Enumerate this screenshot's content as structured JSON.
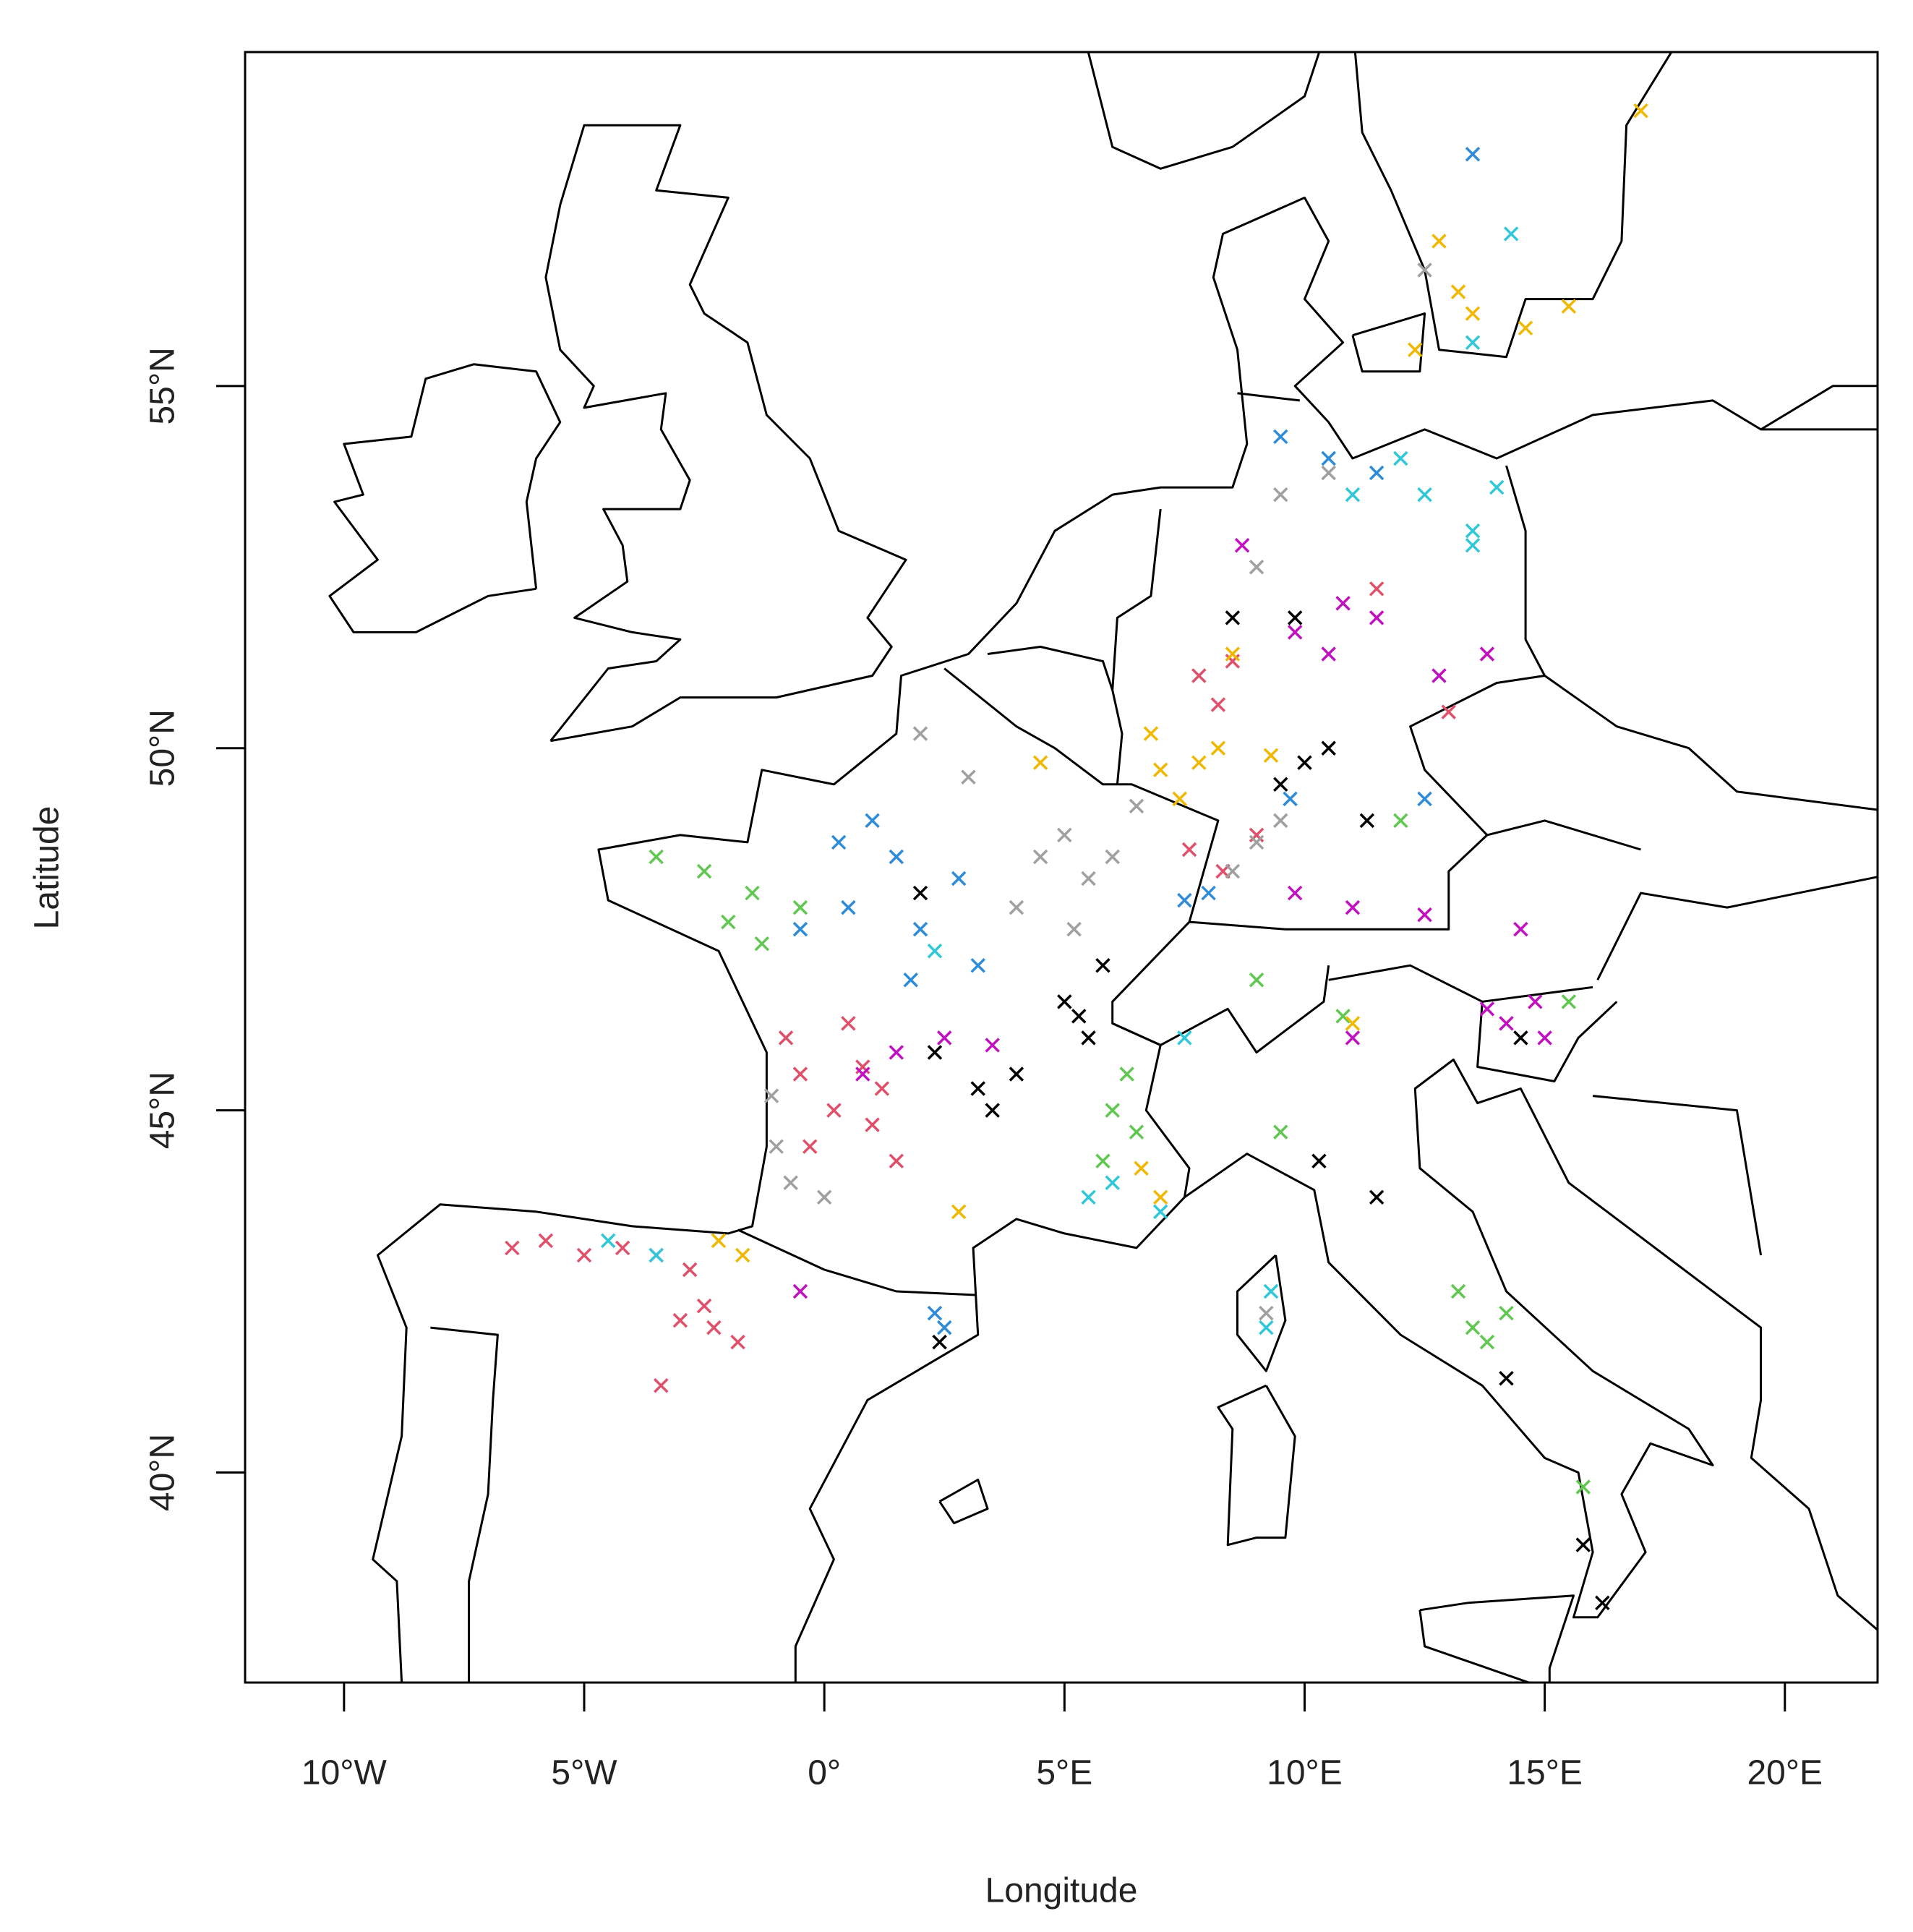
{
  "chart_data": {
    "type": "scatter",
    "x_label": "Longitude",
    "y_label": "Latitude",
    "xlim": [
      -12.06,
      21.93
    ],
    "ylim": [
      37.1,
      59.61
    ],
    "xticks": [
      {
        "value": -10,
        "label": "10°W"
      },
      {
        "value": -5,
        "label": "5°W"
      },
      {
        "value": 0,
        "label": "0°"
      },
      {
        "value": 5,
        "label": "5°E"
      },
      {
        "value": 10,
        "label": "10°E"
      },
      {
        "value": 15,
        "label": "15°E"
      },
      {
        "value": 20,
        "label": "20°E"
      }
    ],
    "yticks": [
      {
        "value": 40,
        "label": "40°N"
      },
      {
        "value": 45,
        "label": "45°N"
      },
      {
        "value": 50,
        "label": "50°N"
      },
      {
        "value": 55,
        "label": "55°N"
      }
    ],
    "marker": "x",
    "series": [
      {
        "color": "#e0506a",
        "x": [
          -6.5,
          -5.8,
          -5,
          -4.2,
          -3.5,
          -2.8,
          -2.5,
          -3,
          -2.3,
          -3.4,
          -1.8,
          -0.5,
          0.2,
          1,
          -0.3,
          0.8,
          1.5,
          0.5,
          -0.8,
          1.2,
          7.8,
          8.5,
          8.2,
          7.6,
          8.3,
          9.0,
          11.5,
          13
        ],
        "values": [
          43.1,
          43.2,
          43.0,
          43.1,
          43.0,
          42.8,
          42.3,
          42.1,
          42.0,
          41.2,
          41.8,
          45.5,
          45.0,
          44.8,
          44.5,
          45.6,
          44.3,
          46.2,
          46.0,
          45.3,
          51.0,
          51.2,
          50.6,
          48.6,
          48.3,
          48.8,
          52.2,
          50.5
        ]
      },
      {
        "color": "#c010c0",
        "x": [
          1.5,
          2.5,
          3.5,
          0.8,
          9.8,
          10.8,
          11.5,
          10.5,
          9.8,
          11,
          12.5,
          14.5,
          14.2,
          15,
          14.8,
          13.8,
          12.8,
          13.8,
          8.7,
          -0.5,
          11
        ],
        "values": [
          45.8,
          46.0,
          45.9,
          45.5,
          51.6,
          52.0,
          51.8,
          51.3,
          48.0,
          47.8,
          47.7,
          47.5,
          46.2,
          46.0,
          46.5,
          46.4,
          51.0,
          51.3,
          52.8,
          42.5,
          46
        ]
      },
      {
        "color": "#000000",
        "x": [
          4,
          3.5,
          5,
          5.5,
          5.8,
          5.3,
          3.2,
          2.3,
          9.5,
          10,
          9.8,
          10.5,
          11.3,
          8.5,
          10.3,
          11.5,
          14.2,
          15.8,
          16.2,
          2.4,
          14.5,
          2
        ],
        "values": [
          45.5,
          45,
          46.5,
          46.0,
          47.0,
          46.3,
          45.3,
          45.8,
          49.5,
          49.8,
          51.8,
          50.0,
          49.0,
          51.8,
          44.3,
          43.8,
          41.3,
          39,
          38.2,
          41.8,
          46.0,
          48
        ]
      },
      {
        "color": "#a0a0a0",
        "x": [
          5,
          5.5,
          4.5,
          6,
          5.2,
          4,
          6.5,
          -1,
          -0.7,
          0,
          -1.1,
          8.5,
          9,
          9.5,
          2,
          3,
          9.5,
          10.5,
          9.2,
          12.5,
          9
        ],
        "values": [
          48.8,
          48.2,
          48.5,
          48.5,
          47.5,
          47.8,
          49.2,
          44.5,
          44.0,
          43.8,
          45.2,
          48.3,
          48.7,
          49.0,
          50.2,
          49.6,
          53.5,
          53.8,
          42.2,
          56.6,
          52.5
        ]
      },
      {
        "color": "#2e8bd8",
        "x": [
          -0.5,
          0.5,
          1.5,
          2,
          2.8,
          1,
          3.2,
          0.3,
          1.8,
          9.5,
          10.5,
          11.5,
          7.5,
          8,
          12.5,
          2.3,
          2.5,
          9.7,
          13.5
        ],
        "values": [
          47.5,
          47.8,
          48.5,
          47.5,
          48.2,
          49.0,
          47.0,
          48.7,
          46.8,
          54.3,
          54.0,
          53.8,
          47.9,
          48,
          49.3,
          42.2,
          42.0,
          49.3,
          58.2
        ]
      },
      {
        "color": "#30c8d8",
        "x": [
          12.5,
          13.5,
          14,
          12,
          13.5,
          11,
          2.3,
          6,
          7,
          5.5,
          -4.5,
          -3.5,
          9.2,
          9.3,
          14.3,
          13.5,
          7.5
        ],
        "values": [
          53.5,
          53.0,
          53.6,
          54.0,
          52.8,
          53.5,
          47.2,
          44,
          43.6,
          43.8,
          43.2,
          43.0,
          42.0,
          42.5,
          57.1,
          55.6,
          46
        ]
      },
      {
        "color": "#60c850",
        "x": [
          -3.5,
          -2.5,
          -1.5,
          -2,
          -0.5,
          -1.3,
          6,
          6.5,
          5.8,
          6.3,
          13.5,
          13.8,
          13.2,
          14.2,
          9.5,
          10.8,
          12,
          15.8,
          15.5,
          9
        ],
        "values": [
          48.5,
          48.3,
          48.0,
          47.6,
          47.8,
          47.3,
          45,
          44.7,
          44.3,
          45.5,
          42.0,
          41.8,
          42.5,
          42.2,
          44.7,
          46.3,
          49,
          39.8,
          46.5,
          46.8
        ]
      },
      {
        "color": "#f0b800",
        "x": [
          7,
          7.8,
          7.4,
          8.2,
          6.8,
          9.3,
          8.5,
          12.8,
          13.2,
          13.5,
          14.6,
          15.5,
          12.3,
          -2.2,
          -1.7,
          6.6,
          7,
          4.5,
          11,
          2.8,
          17
        ],
        "values": [
          49.7,
          49.8,
          49.3,
          50.0,
          50.2,
          49.9,
          51.3,
          57.0,
          56.3,
          56.0,
          55.8,
          56.1,
          55.5,
          43.2,
          43.0,
          44.2,
          43.8,
          49.8,
          46.2,
          43.6,
          58.8
        ]
      }
    ]
  }
}
